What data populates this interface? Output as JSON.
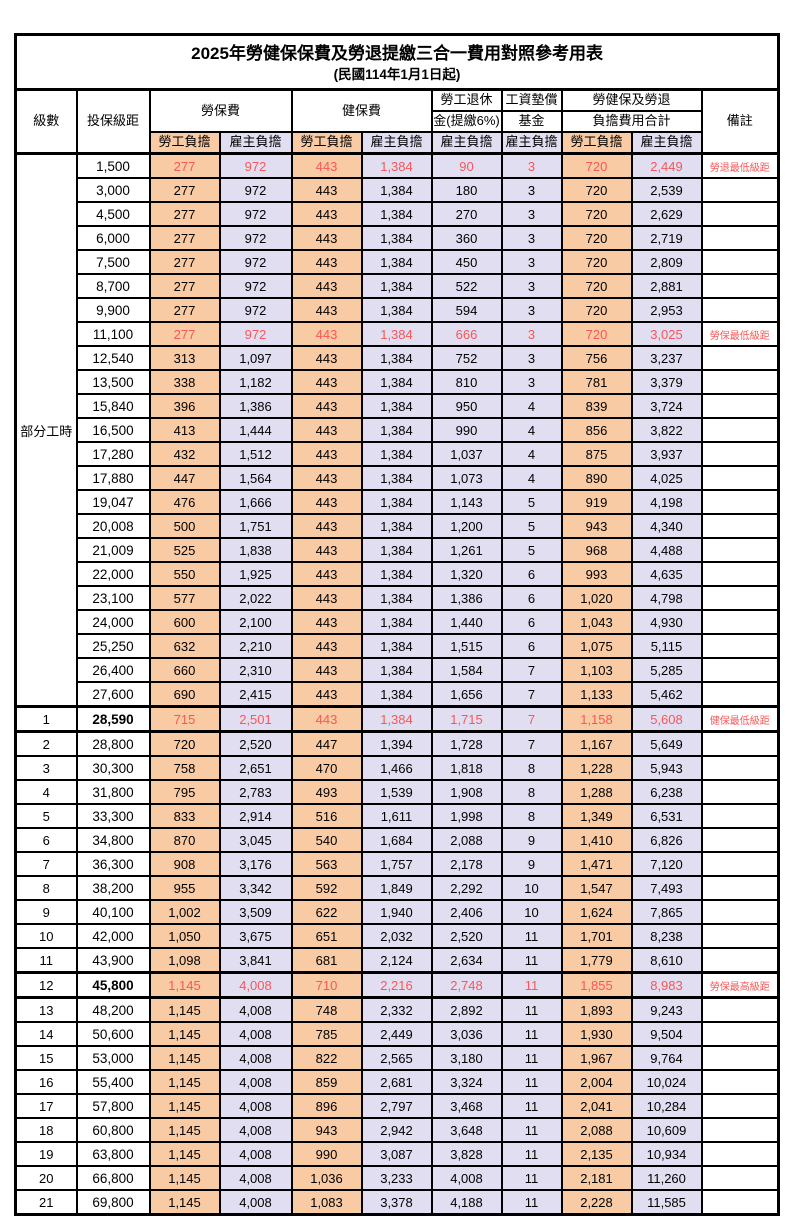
{
  "title": "2025年勞健保保費及勞退提繳三合一費用對照參考用表",
  "subtitle": "(民國114年1月1日起)",
  "colors": {
    "employee_bg": "#F9CBA4",
    "employer_bg": "#E1DEF2",
    "highlight_text": "#F75757"
  },
  "header": {
    "level": "級數",
    "salary": "投保級距",
    "labor_fee_group": "勞保費",
    "health_fee_group": "健保費",
    "pension_line1": "勞工退休",
    "pension_line2": "金(提繳6%)",
    "wage_fund_line1": "工資墊償",
    "wage_fund_line2": "基金",
    "total_line1": "勞健保及勞退",
    "total_line2": "負擔費用合計",
    "remark": "備註",
    "employee": "勞工負擔",
    "employer": "雇主負擔"
  },
  "part_time_label": "部分工時",
  "rows": [
    {
      "level": "",
      "salary": "1,500",
      "values": [
        "277",
        "972",
        "443",
        "1,384",
        "90",
        "3",
        "720",
        "2,449"
      ],
      "remark": "勞退最低級距",
      "highlight": true,
      "thick": false
    },
    {
      "level": "",
      "salary": "3,000",
      "values": [
        "277",
        "972",
        "443",
        "1,384",
        "180",
        "3",
        "720",
        "2,539"
      ],
      "remark": "",
      "highlight": false,
      "thick": false
    },
    {
      "level": "",
      "salary": "4,500",
      "values": [
        "277",
        "972",
        "443",
        "1,384",
        "270",
        "3",
        "720",
        "2,629"
      ],
      "remark": "",
      "highlight": false,
      "thick": false
    },
    {
      "level": "",
      "salary": "6,000",
      "values": [
        "277",
        "972",
        "443",
        "1,384",
        "360",
        "3",
        "720",
        "2,719"
      ],
      "remark": "",
      "highlight": false,
      "thick": false
    },
    {
      "level": "",
      "salary": "7,500",
      "values": [
        "277",
        "972",
        "443",
        "1,384",
        "450",
        "3",
        "720",
        "2,809"
      ],
      "remark": "",
      "highlight": false,
      "thick": false
    },
    {
      "level": "",
      "salary": "8,700",
      "values": [
        "277",
        "972",
        "443",
        "1,384",
        "522",
        "3",
        "720",
        "2,881"
      ],
      "remark": "",
      "highlight": false,
      "thick": false
    },
    {
      "level": "",
      "salary": "9,900",
      "values": [
        "277",
        "972",
        "443",
        "1,384",
        "594",
        "3",
        "720",
        "2,953"
      ],
      "remark": "",
      "highlight": false,
      "thick": false
    },
    {
      "level": "",
      "salary": "11,100",
      "values": [
        "277",
        "972",
        "443",
        "1,384",
        "666",
        "3",
        "720",
        "3,025"
      ],
      "remark": "勞保最低級距",
      "highlight": true,
      "thick": false
    },
    {
      "level": "",
      "salary": "12,540",
      "values": [
        "313",
        "1,097",
        "443",
        "1,384",
        "752",
        "3",
        "756",
        "3,237"
      ],
      "remark": "",
      "highlight": false,
      "thick": false
    },
    {
      "level": "",
      "salary": "13,500",
      "values": [
        "338",
        "1,182",
        "443",
        "1,384",
        "810",
        "3",
        "781",
        "3,379"
      ],
      "remark": "",
      "highlight": false,
      "thick": false
    },
    {
      "level": "",
      "salary": "15,840",
      "values": [
        "396",
        "1,386",
        "443",
        "1,384",
        "950",
        "4",
        "839",
        "3,724"
      ],
      "remark": "",
      "highlight": false,
      "thick": false
    },
    {
      "level": "",
      "salary": "16,500",
      "values": [
        "413",
        "1,444",
        "443",
        "1,384",
        "990",
        "4",
        "856",
        "3,822"
      ],
      "remark": "",
      "highlight": false,
      "thick": false
    },
    {
      "level": "",
      "salary": "17,280",
      "values": [
        "432",
        "1,512",
        "443",
        "1,384",
        "1,037",
        "4",
        "875",
        "3,937"
      ],
      "remark": "",
      "highlight": false,
      "thick": false
    },
    {
      "level": "",
      "salary": "17,880",
      "values": [
        "447",
        "1,564",
        "443",
        "1,384",
        "1,073",
        "4",
        "890",
        "4,025"
      ],
      "remark": "",
      "highlight": false,
      "thick": false
    },
    {
      "level": "",
      "salary": "19,047",
      "values": [
        "476",
        "1,666",
        "443",
        "1,384",
        "1,143",
        "5",
        "919",
        "4,198"
      ],
      "remark": "",
      "highlight": false,
      "thick": false
    },
    {
      "level": "",
      "salary": "20,008",
      "values": [
        "500",
        "1,751",
        "443",
        "1,384",
        "1,200",
        "5",
        "943",
        "4,340"
      ],
      "remark": "",
      "highlight": false,
      "thick": false
    },
    {
      "level": "",
      "salary": "21,009",
      "values": [
        "525",
        "1,838",
        "443",
        "1,384",
        "1,261",
        "5",
        "968",
        "4,488"
      ],
      "remark": "",
      "highlight": false,
      "thick": false
    },
    {
      "level": "",
      "salary": "22,000",
      "values": [
        "550",
        "1,925",
        "443",
        "1,384",
        "1,320",
        "6",
        "993",
        "4,635"
      ],
      "remark": "",
      "highlight": false,
      "thick": false
    },
    {
      "level": "",
      "salary": "23,100",
      "values": [
        "577",
        "2,022",
        "443",
        "1,384",
        "1,386",
        "6",
        "1,020",
        "4,798"
      ],
      "remark": "",
      "highlight": false,
      "thick": false
    },
    {
      "level": "",
      "salary": "24,000",
      "values": [
        "600",
        "2,100",
        "443",
        "1,384",
        "1,440",
        "6",
        "1,043",
        "4,930"
      ],
      "remark": "",
      "highlight": false,
      "thick": false
    },
    {
      "level": "",
      "salary": "25,250",
      "values": [
        "632",
        "2,210",
        "443",
        "1,384",
        "1,515",
        "6",
        "1,075",
        "5,115"
      ],
      "remark": "",
      "highlight": false,
      "thick": false
    },
    {
      "level": "",
      "salary": "26,400",
      "values": [
        "660",
        "2,310",
        "443",
        "1,384",
        "1,584",
        "7",
        "1,103",
        "5,285"
      ],
      "remark": "",
      "highlight": false,
      "thick": false
    },
    {
      "level": "",
      "salary": "27,600",
      "values": [
        "690",
        "2,415",
        "443",
        "1,384",
        "1,656",
        "7",
        "1,133",
        "5,462"
      ],
      "remark": "",
      "highlight": false,
      "thick": false
    },
    {
      "level": "1",
      "salary": "28,590",
      "values": [
        "715",
        "2,501",
        "443",
        "1,384",
        "1,715",
        "7",
        "1,158",
        "5,608"
      ],
      "remark": "健保最低級距",
      "highlight": true,
      "thick": true
    },
    {
      "level": "2",
      "salary": "28,800",
      "values": [
        "720",
        "2,520",
        "447",
        "1,394",
        "1,728",
        "7",
        "1,167",
        "5,649"
      ],
      "remark": "",
      "highlight": false,
      "thick": false
    },
    {
      "level": "3",
      "salary": "30,300",
      "values": [
        "758",
        "2,651",
        "470",
        "1,466",
        "1,818",
        "8",
        "1,228",
        "5,943"
      ],
      "remark": "",
      "highlight": false,
      "thick": false
    },
    {
      "level": "4",
      "salary": "31,800",
      "values": [
        "795",
        "2,783",
        "493",
        "1,539",
        "1,908",
        "8",
        "1,288",
        "6,238"
      ],
      "remark": "",
      "highlight": false,
      "thick": false
    },
    {
      "level": "5",
      "salary": "33,300",
      "values": [
        "833",
        "2,914",
        "516",
        "1,611",
        "1,998",
        "8",
        "1,349",
        "6,531"
      ],
      "remark": "",
      "highlight": false,
      "thick": false
    },
    {
      "level": "6",
      "salary": "34,800",
      "values": [
        "870",
        "3,045",
        "540",
        "1,684",
        "2,088",
        "9",
        "1,410",
        "6,826"
      ],
      "remark": "",
      "highlight": false,
      "thick": false
    },
    {
      "level": "7",
      "salary": "36,300",
      "values": [
        "908",
        "3,176",
        "563",
        "1,757",
        "2,178",
        "9",
        "1,471",
        "7,120"
      ],
      "remark": "",
      "highlight": false,
      "thick": false
    },
    {
      "level": "8",
      "salary": "38,200",
      "values": [
        "955",
        "3,342",
        "592",
        "1,849",
        "2,292",
        "10",
        "1,547",
        "7,493"
      ],
      "remark": "",
      "highlight": false,
      "thick": false
    },
    {
      "level": "9",
      "salary": "40,100",
      "values": [
        "1,002",
        "3,509",
        "622",
        "1,940",
        "2,406",
        "10",
        "1,624",
        "7,865"
      ],
      "remark": "",
      "highlight": false,
      "thick": false
    },
    {
      "level": "10",
      "salary": "42,000",
      "values": [
        "1,050",
        "3,675",
        "651",
        "2,032",
        "2,520",
        "11",
        "1,701",
        "8,238"
      ],
      "remark": "",
      "highlight": false,
      "thick": false
    },
    {
      "level": "11",
      "salary": "43,900",
      "values": [
        "1,098",
        "3,841",
        "681",
        "2,124",
        "2,634",
        "11",
        "1,779",
        "8,610"
      ],
      "remark": "",
      "highlight": false,
      "thick": false
    },
    {
      "level": "12",
      "salary": "45,800",
      "values": [
        "1,145",
        "4,008",
        "710",
        "2,216",
        "2,748",
        "11",
        "1,855",
        "8,983"
      ],
      "remark": "勞保最高級距",
      "highlight": true,
      "thick": true
    },
    {
      "level": "13",
      "salary": "48,200",
      "values": [
        "1,145",
        "4,008",
        "748",
        "2,332",
        "2,892",
        "11",
        "1,893",
        "9,243"
      ],
      "remark": "",
      "highlight": false,
      "thick": false
    },
    {
      "level": "14",
      "salary": "50,600",
      "values": [
        "1,145",
        "4,008",
        "785",
        "2,449",
        "3,036",
        "11",
        "1,930",
        "9,504"
      ],
      "remark": "",
      "highlight": false,
      "thick": false
    },
    {
      "level": "15",
      "salary": "53,000",
      "values": [
        "1,145",
        "4,008",
        "822",
        "2,565",
        "3,180",
        "11",
        "1,967",
        "9,764"
      ],
      "remark": "",
      "highlight": false,
      "thick": false
    },
    {
      "level": "16",
      "salary": "55,400",
      "values": [
        "1,145",
        "4,008",
        "859",
        "2,681",
        "3,324",
        "11",
        "2,004",
        "10,024"
      ],
      "remark": "",
      "highlight": false,
      "thick": false
    },
    {
      "level": "17",
      "salary": "57,800",
      "values": [
        "1,145",
        "4,008",
        "896",
        "2,797",
        "3,468",
        "11",
        "2,041",
        "10,284"
      ],
      "remark": "",
      "highlight": false,
      "thick": false
    },
    {
      "level": "18",
      "salary": "60,800",
      "values": [
        "1,145",
        "4,008",
        "943",
        "2,942",
        "3,648",
        "11",
        "2,088",
        "10,609"
      ],
      "remark": "",
      "highlight": false,
      "thick": false
    },
    {
      "level": "19",
      "salary": "63,800",
      "values": [
        "1,145",
        "4,008",
        "990",
        "3,087",
        "3,828",
        "11",
        "2,135",
        "10,934"
      ],
      "remark": "",
      "highlight": false,
      "thick": false
    },
    {
      "level": "20",
      "salary": "66,800",
      "values": [
        "1,145",
        "4,008",
        "1,036",
        "3,233",
        "4,008",
        "11",
        "2,181",
        "11,260"
      ],
      "remark": "",
      "highlight": false,
      "thick": false
    },
    {
      "level": "21",
      "salary": "69,800",
      "values": [
        "1,145",
        "4,008",
        "1,083",
        "3,378",
        "4,188",
        "11",
        "2,228",
        "11,585"
      ],
      "remark": "",
      "highlight": false,
      "thick": false
    }
  ]
}
